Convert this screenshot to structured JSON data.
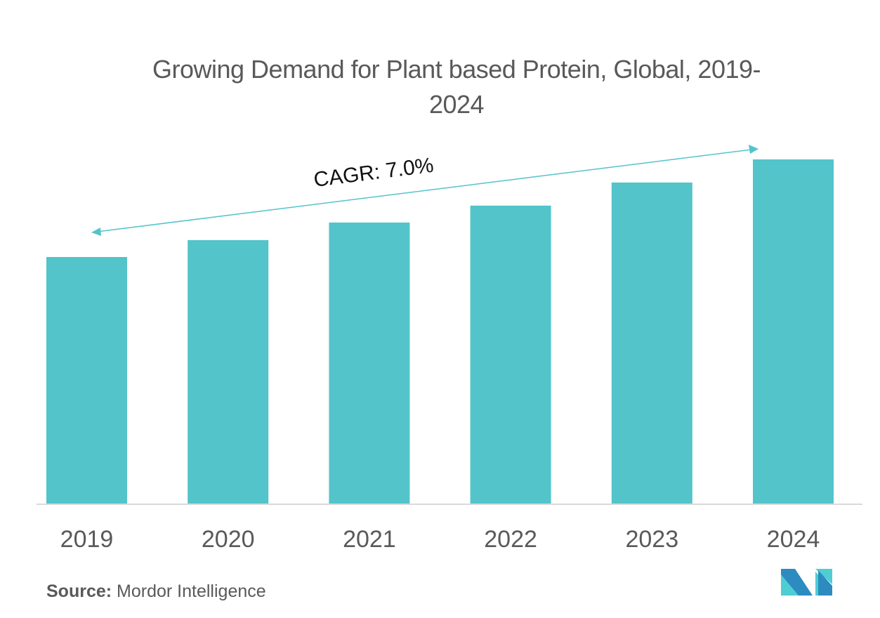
{
  "title": "Growing Demand for Plant based Protein, Global, 2019-2024",
  "title_line1": "Growing Demand for Plant based Protein, Global, 2019-",
  "title_line2": "2024",
  "source_label": "Source:",
  "source_value": "Mordor Intelligence",
  "logo": "mordor-intelligence-logo",
  "colors": {
    "bar": "#52C4CA",
    "axis": "#D9D9D9",
    "text": "#595959",
    "logo_dark": "#2E8BC0",
    "logo_light": "#4ECDD3"
  },
  "chart_data": {
    "type": "bar",
    "title": "Growing Demand for Plant based Protein, Global, 2019-2024",
    "xlabel": "",
    "ylabel": "",
    "categories": [
      "2019",
      "2020",
      "2021",
      "2022",
      "2023",
      "2024"
    ],
    "values": [
      71.7,
      76.6,
      81.7,
      86.6,
      93.3,
      100
    ],
    "value_note": "relative bar heights (index, 2024 = 100); no y-axis shown",
    "ylim": [
      0,
      100
    ],
    "grid": false,
    "annotation": {
      "text": "CAGR: 7.0%",
      "type": "double-arrow",
      "from": "2019",
      "to": "2024"
    }
  }
}
